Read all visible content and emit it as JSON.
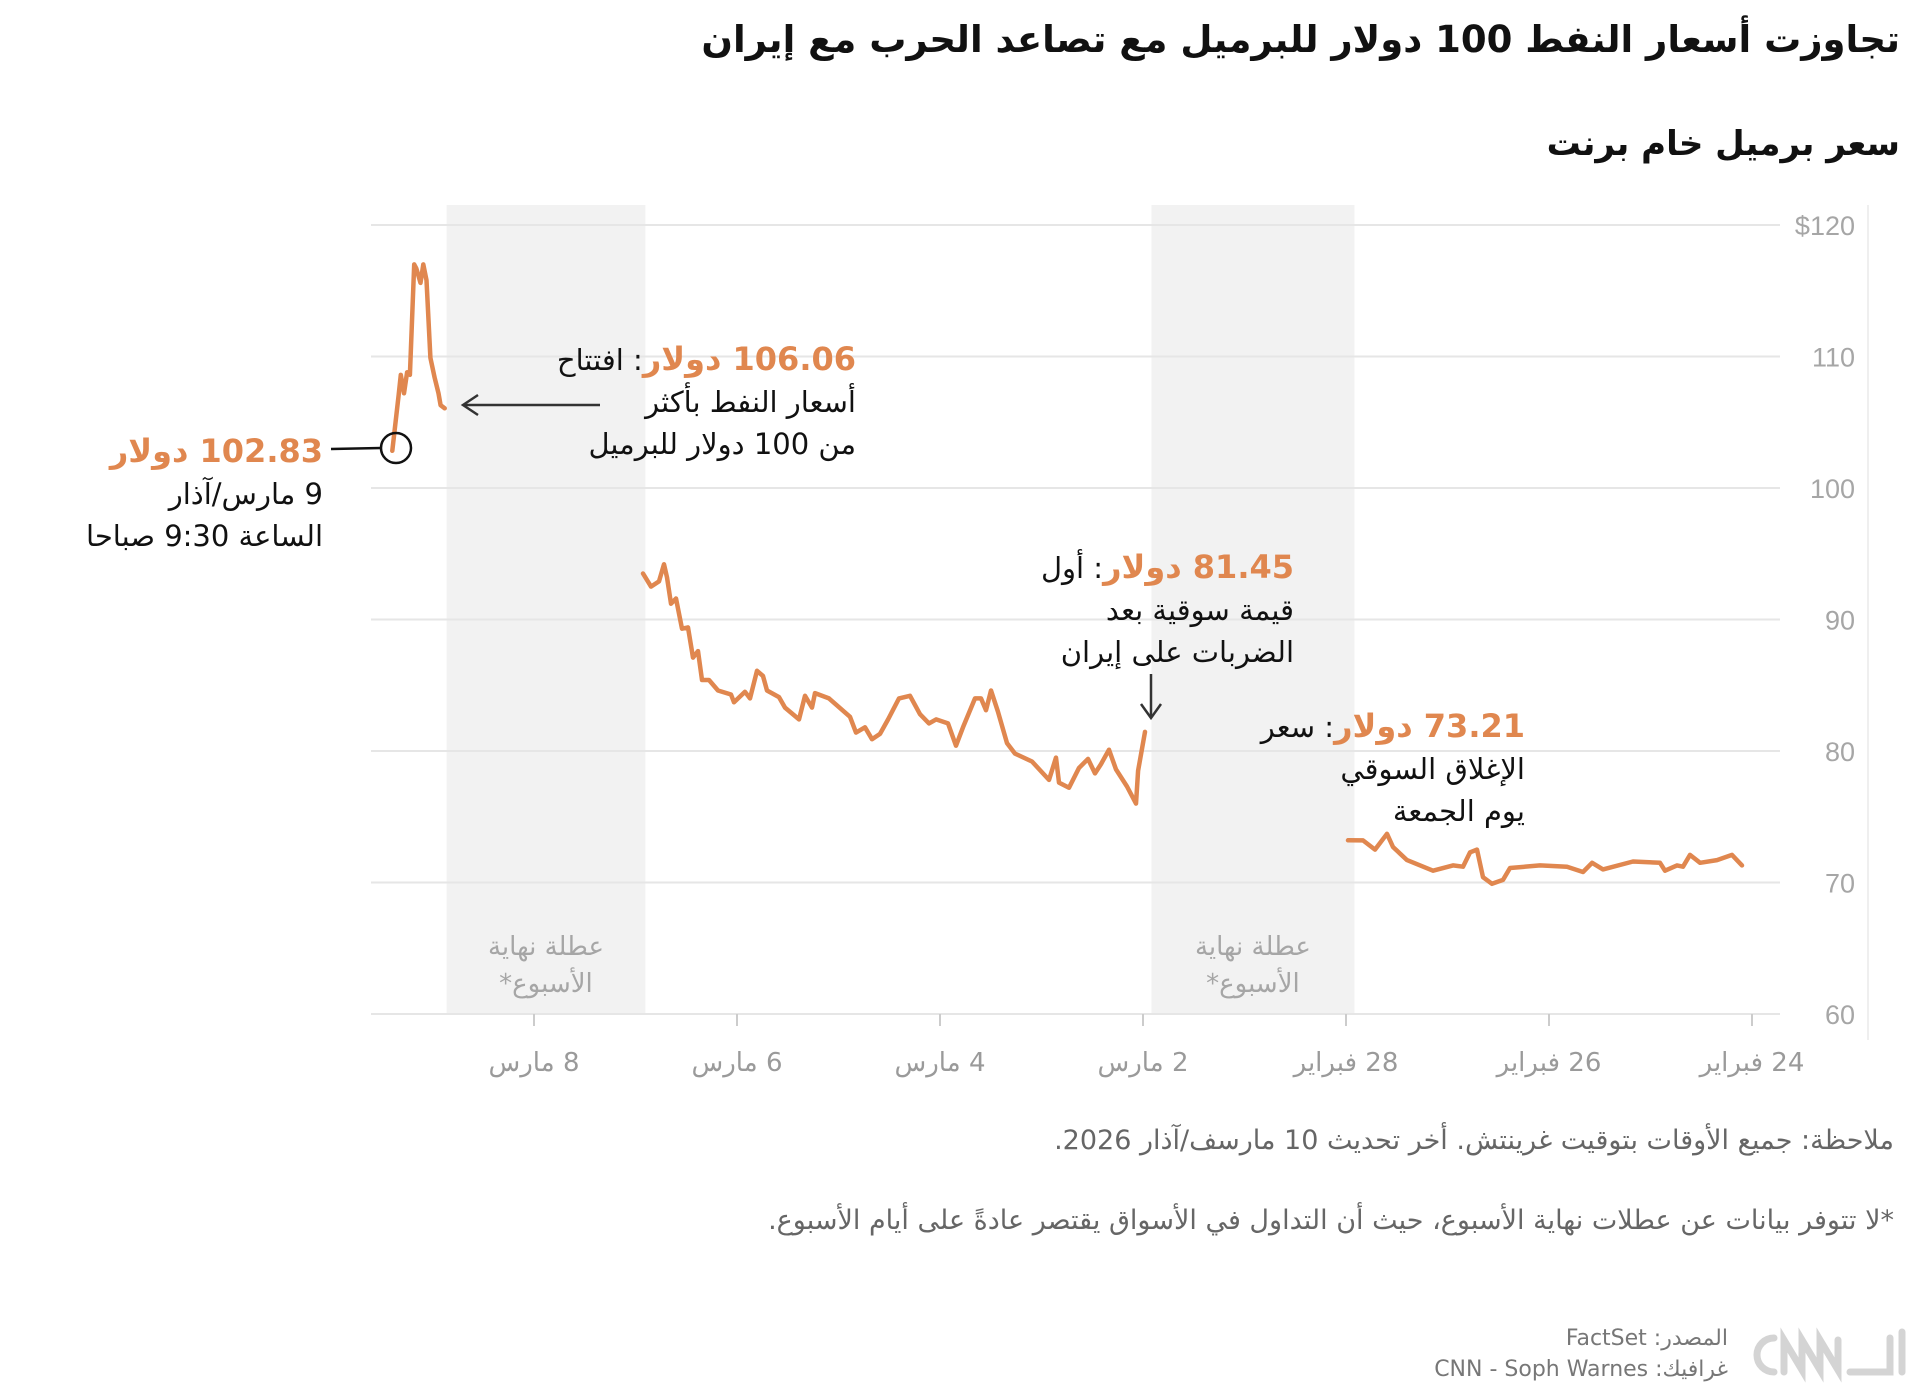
{
  "header": {
    "title": "تجاوزت أسعار النفط 100 دولار للبرميل مع تصاعد الحرب مع إيران",
    "subtitle": "سعر برميل خام برنت"
  },
  "chart_data": {
    "type": "line",
    "title": "سعر برميل خام برنت",
    "xlabel": "",
    "ylabel": "",
    "ylim": [
      60,
      120
    ],
    "y_ticks": [
      {
        "value": 120,
        "label": "$120"
      },
      {
        "value": 110,
        "label": "110"
      },
      {
        "value": 100,
        "label": "100"
      },
      {
        "value": 90,
        "label": "90"
      },
      {
        "value": 80,
        "label": "80"
      },
      {
        "value": 70,
        "label": "70"
      },
      {
        "value": 60,
        "label": "60"
      }
    ],
    "x_ticks": [
      {
        "date": "2026-02-24",
        "label": "24 فبراير"
      },
      {
        "date": "2026-02-26",
        "label": "26 فبراير"
      },
      {
        "date": "2026-02-28",
        "label": "28 فبراير"
      },
      {
        "date": "2026-03-02",
        "label": "2 مارس"
      },
      {
        "date": "2026-03-04",
        "label": "4 مارس"
      },
      {
        "date": "2026-03-06",
        "label": "6 مارس"
      },
      {
        "date": "2026-03-08",
        "label": "8 مارس"
      }
    ],
    "x_direction": "right-to-left",
    "grid": true,
    "line_color": "#e0874f",
    "weekend_shading": [
      {
        "from": "2026-02-27T22:00",
        "to": "2026-03-01T22:00",
        "label": [
          "عطلة نهاية",
          "الأسبوع*"
        ]
      },
      {
        "from": "2026-03-06T21:40",
        "to": "2026-03-08T20:40",
        "label": [
          "عطلة نهاية",
          "الأسبوع*"
        ]
      }
    ],
    "series": [
      {
        "segments": [
          [
            [
              "2026-02-24T02:22",
              71.3
            ],
            [
              "2026-02-24T04:44",
              72.1
            ],
            [
              "2026-02-24T08:17",
              71.7
            ],
            [
              "2026-02-24T12:17",
              71.5
            ],
            [
              "2026-02-24T14:40",
              72.1
            ],
            [
              "2026-02-24T16:19",
              71.2
            ],
            [
              "2026-02-24T17:44",
              71.3
            ],
            [
              "2026-02-24T20:34",
              70.9
            ],
            [
              "2026-02-24T21:45",
              71.5
            ],
            [
              "2026-02-25T04:08",
              71.6
            ],
            [
              "2026-02-25T11:14",
              71.0
            ],
            [
              "2026-02-25T13:49",
              71.5
            ],
            [
              "2026-02-25T15:58",
              70.8
            ],
            [
              "2026-02-25T19:45",
              71.2
            ],
            [
              "2026-02-26T02:08",
              71.3
            ],
            [
              "2026-02-26T09:13",
              71.1
            ],
            [
              "2026-02-26T10:52",
              70.2
            ],
            [
              "2026-02-26T13:29",
              69.9
            ],
            [
              "2026-02-26T15:36",
              70.4
            ],
            [
              "2026-02-26T17:01",
              72.5
            ],
            [
              "2026-02-26T18:40",
              72.3
            ],
            [
              "2026-02-26T20:20",
              71.2
            ],
            [
              "2026-02-26T22:42",
              71.3
            ],
            [
              "2026-02-27T03:26",
              70.9
            ],
            [
              "2026-02-27T09:34",
              71.7
            ],
            [
              "2026-02-27T12:53",
              72.7
            ],
            [
              "2026-02-27T14:18",
              73.7
            ],
            [
              "2026-02-27T17:08",
              72.5
            ],
            [
              "2026-02-27T19:59",
              73.2
            ],
            [
              "2026-02-27T23:31",
              73.21
            ]
          ],
          [
            [
              "2026-03-01T23:31",
              81.45
            ],
            [
              "2026-03-02T01:10",
              78.5
            ],
            [
              "2026-03-02T01:39",
              76.0
            ],
            [
              "2026-03-02T03:47",
              77.3
            ],
            [
              "2026-03-02T06:23",
              78.6
            ],
            [
              "2026-03-02T08:02",
              80.1
            ],
            [
              "2026-03-02T09:56",
              79.0
            ],
            [
              "2026-03-02T11:21",
              78.3
            ],
            [
              "2026-03-02T13:00",
              79.4
            ],
            [
              "2026-03-02T15:09",
              78.7
            ],
            [
              "2026-03-02T17:30",
              77.2
            ],
            [
              "2026-03-02T19:52",
              77.6
            ],
            [
              "2026-03-02T20:34",
              79.5
            ],
            [
              "2026-03-02T22:13",
              77.8
            ],
            [
              "2026-03-03T02:15",
              79.2
            ],
            [
              "2026-03-03T06:16",
              79.8
            ],
            [
              "2026-03-03T08:10",
              80.6
            ],
            [
              "2026-03-03T10:18",
              83.0
            ],
            [
              "2026-03-03T11:57",
              84.6
            ],
            [
              "2026-03-03T13:07",
              83.1
            ],
            [
              "2026-03-03T14:18",
              84.0
            ],
            [
              "2026-03-03T15:43",
              84.0
            ],
            [
              "2026-03-03T18:33",
              81.8
            ],
            [
              "2026-03-03T20:13",
              80.4
            ],
            [
              "2026-03-03T22:06",
              82.1
            ],
            [
              "2026-03-04T00:56",
              82.4
            ],
            [
              "2026-03-04T02:36",
              82.1
            ],
            [
              "2026-03-04T04:44",
              82.8
            ],
            [
              "2026-03-04T07:06",
              84.2
            ],
            [
              "2026-03-04T09:42",
              84.0
            ],
            [
              "2026-03-04T12:17",
              82.4
            ],
            [
              "2026-03-04T14:11",
              81.3
            ],
            [
              "2026-03-04T16:05",
              80.9
            ],
            [
              "2026-03-04T17:44",
              81.8
            ],
            [
              "2026-03-04T19:52",
              81.4
            ],
            [
              "2026-03-04T21:17",
              82.6
            ],
            [
              "2026-03-05T02:15",
              84.0
            ],
            [
              "2026-03-05T05:34",
              84.4
            ],
            [
              "2026-03-05T06:16",
              83.3
            ],
            [
              "2026-03-05T07:55",
              84.2
            ],
            [
              "2026-03-05T09:20",
              82.4
            ],
            [
              "2026-03-05T12:39",
              83.3
            ],
            [
              "2026-03-05T14:04",
              84.1
            ],
            [
              "2026-03-05T16:54",
              84.6
            ],
            [
              "2026-03-05T17:51",
              85.7
            ],
            [
              "2026-03-05T19:16",
              86.1
            ],
            [
              "2026-03-05T20:55",
              84.0
            ],
            [
              "2026-03-05T22:06",
              84.5
            ],
            [
              "2026-03-06T00:43",
              83.7
            ],
            [
              "2026-03-06T01:25",
              84.3
            ],
            [
              "2026-03-06T04:29",
              84.6
            ],
            [
              "2026-03-06T06:37",
              85.4
            ],
            [
              "2026-03-06T08:17",
              85.4
            ],
            [
              "2026-03-06T09:13",
              87.6
            ],
            [
              "2026-03-06T10:24",
              87.1
            ],
            [
              "2026-03-06T11:35",
              89.4
            ],
            [
              "2026-03-06T13:00",
              89.3
            ],
            [
              "2026-03-06T14:25",
              91.6
            ],
            [
              "2026-03-06T15:36",
              91.2
            ],
            [
              "2026-03-06T16:33",
              93.2
            ],
            [
              "2026-03-06T17:15",
              94.2
            ],
            [
              "2026-03-06T18:26",
              92.9
            ],
            [
              "2026-03-06T20:20",
              92.5
            ],
            [
              "2026-03-06T22:13",
              93.5
            ]
          ],
          [
            [
              "2026-03-08T21:07",
              106.06
            ],
            [
              "2026-03-08T22:05",
              106.3
            ],
            [
              "2026-03-08T22:35",
              107.2
            ],
            [
              "2026-03-08T23:30",
              108.4
            ],
            [
              "2026-03-09T00:30",
              109.9
            ],
            [
              "2026-03-09T01:25",
              115.8
            ],
            [
              "2026-03-09T02:10",
              117.0
            ],
            [
              "2026-03-09T02:50",
              115.6
            ],
            [
              "2026-03-09T03:50",
              116.7
            ],
            [
              "2026-03-09T04:20",
              117.0
            ],
            [
              "2026-03-09T05:20",
              108.6
            ],
            [
              "2026-03-09T06:00",
              108.8
            ],
            [
              "2026-03-09T06:45",
              107.2
            ],
            [
              "2026-03-09T07:30",
              108.6
            ],
            [
              "2026-03-09T08:00",
              107.1
            ],
            [
              "2026-03-09T09:30",
              102.83
            ]
          ]
        ]
      }
    ],
    "annotations": {
      "latest": {
        "value": "102.83 دولار",
        "lines": [
          "9 مارس/آذار",
          "الساعة 9:30 صباحا"
        ]
      },
      "open": {
        "value": "106.06 دولار",
        "text": ": افتتاح",
        "lines": [
          "أسعار النفط بأكثر",
          "من 100 دولار للبرميل"
        ]
      },
      "first": {
        "value": "81.45 دولار",
        "text": ": أول",
        "lines": [
          "قيمة سوقية بعد",
          "الضربات على إيران"
        ]
      },
      "close": {
        "value": "73.21 دولار",
        "text": ": سعر",
        "lines": [
          "الإغلاق السوقي",
          "يوم الجمعة"
        ]
      }
    }
  },
  "footer": {
    "note": "ملاحظة: جميع الأوقات بتوقيت غرينتش. أخر تحديث 10 مارسف/آذار 2026.",
    "weekend_note": "*لا تتوفر بيانات عن عطلات نهاية الأسبوع، حيث أن التداول في الأسواق يقتصر عادةً على أيام الأسبوع.",
    "source": "المصدر: FactSet",
    "graphic": "غرافيك: CNN - Soph Warnes",
    "logo": "CNN بالعربية"
  }
}
